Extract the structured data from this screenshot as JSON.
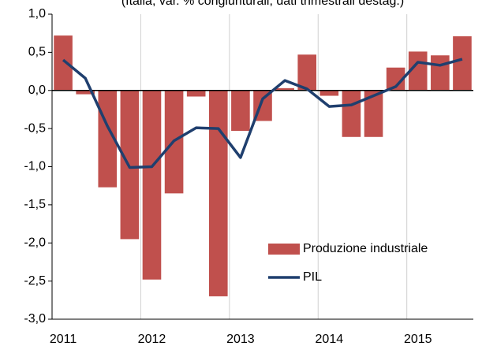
{
  "chart_data": {
    "type": "bar-line",
    "subtitle": "(Italia; var. % congiunturali; dati trimestrali destag.)",
    "categories": [
      "2011",
      null,
      null,
      null,
      "2012",
      null,
      null,
      null,
      "2013",
      null,
      null,
      null,
      "2014",
      null,
      null,
      null,
      "2015",
      null,
      null
    ],
    "series": [
      {
        "name": "Produzione industriale",
        "type": "bar",
        "color": "#c0504d",
        "values": [
          0.72,
          -0.05,
          -1.27,
          -1.95,
          -2.48,
          -1.35,
          -0.08,
          -2.7,
          -0.53,
          -0.4,
          0.03,
          0.47,
          -0.07,
          -0.61,
          -0.61,
          0.3,
          0.51,
          0.46,
          0.71
        ]
      },
      {
        "name": "PIL",
        "type": "line",
        "color": "#1f3f6e",
        "values": [
          0.4,
          0.16,
          -0.47,
          -1.01,
          -1.0,
          -0.66,
          -0.49,
          -0.5,
          -0.88,
          -0.11,
          0.13,
          0.02,
          -0.21,
          -0.19,
          -0.07,
          0.05,
          0.37,
          0.33,
          0.41
        ]
      }
    ],
    "ylim": [
      -3.0,
      1.0
    ],
    "yticks": [
      {
        "value": 1.0,
        "label": "1,0"
      },
      {
        "value": 0.5,
        "label": "0,5"
      },
      {
        "value": 0.0,
        "label": "0,0"
      },
      {
        "value": -0.5,
        "label": "-0,5"
      },
      {
        "value": -1.0,
        "label": "-1,0"
      },
      {
        "value": -1.5,
        "label": "-1,5"
      },
      {
        "value": -2.0,
        "label": "-2,0"
      },
      {
        "value": -2.5,
        "label": "-2,5"
      },
      {
        "value": -3.0,
        "label": "-3,0"
      }
    ],
    "legend": "lower right"
  }
}
